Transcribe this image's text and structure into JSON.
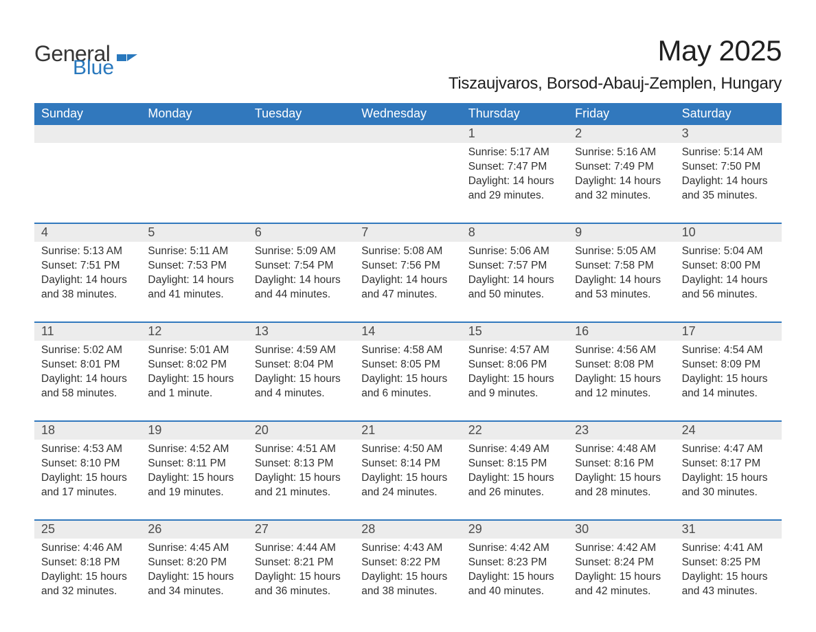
{
  "brand": {
    "part1": "General",
    "part2": "Blue",
    "color1": "#363636",
    "color2": "#2978bd"
  },
  "title": "May 2025",
  "subtitle": "Tiszaujvaros, Borsod-Abauj-Zemplen, Hungary",
  "header_bg": "#3178bd",
  "header_fg": "#ffffff",
  "daynum_bg": "#ececec",
  "divider_color": "#3178bd",
  "page_bg": "#ffffff",
  "text_color": "#303030",
  "day_labels": [
    "Sunday",
    "Monday",
    "Tuesday",
    "Wednesday",
    "Thursday",
    "Friday",
    "Saturday"
  ],
  "weeks": [
    {
      "nums": [
        "",
        "",
        "",
        "",
        "1",
        "2",
        "3"
      ],
      "cells": [
        {
          "sunrise": "",
          "sunset": "",
          "daylight": ""
        },
        {
          "sunrise": "",
          "sunset": "",
          "daylight": ""
        },
        {
          "sunrise": "",
          "sunset": "",
          "daylight": ""
        },
        {
          "sunrise": "",
          "sunset": "",
          "daylight": ""
        },
        {
          "sunrise": "Sunrise: 5:17 AM",
          "sunset": "Sunset: 7:47 PM",
          "daylight": "Daylight: 14 hours and 29 minutes."
        },
        {
          "sunrise": "Sunrise: 5:16 AM",
          "sunset": "Sunset: 7:49 PM",
          "daylight": "Daylight: 14 hours and 32 minutes."
        },
        {
          "sunrise": "Sunrise: 5:14 AM",
          "sunset": "Sunset: 7:50 PM",
          "daylight": "Daylight: 14 hours and 35 minutes."
        }
      ]
    },
    {
      "nums": [
        "4",
        "5",
        "6",
        "7",
        "8",
        "9",
        "10"
      ],
      "cells": [
        {
          "sunrise": "Sunrise: 5:13 AM",
          "sunset": "Sunset: 7:51 PM",
          "daylight": "Daylight: 14 hours and 38 minutes."
        },
        {
          "sunrise": "Sunrise: 5:11 AM",
          "sunset": "Sunset: 7:53 PM",
          "daylight": "Daylight: 14 hours and 41 minutes."
        },
        {
          "sunrise": "Sunrise: 5:09 AM",
          "sunset": "Sunset: 7:54 PM",
          "daylight": "Daylight: 14 hours and 44 minutes."
        },
        {
          "sunrise": "Sunrise: 5:08 AM",
          "sunset": "Sunset: 7:56 PM",
          "daylight": "Daylight: 14 hours and 47 minutes."
        },
        {
          "sunrise": "Sunrise: 5:06 AM",
          "sunset": "Sunset: 7:57 PM",
          "daylight": "Daylight: 14 hours and 50 minutes."
        },
        {
          "sunrise": "Sunrise: 5:05 AM",
          "sunset": "Sunset: 7:58 PM",
          "daylight": "Daylight: 14 hours and 53 minutes."
        },
        {
          "sunrise": "Sunrise: 5:04 AM",
          "sunset": "Sunset: 8:00 PM",
          "daylight": "Daylight: 14 hours and 56 minutes."
        }
      ]
    },
    {
      "nums": [
        "11",
        "12",
        "13",
        "14",
        "15",
        "16",
        "17"
      ],
      "cells": [
        {
          "sunrise": "Sunrise: 5:02 AM",
          "sunset": "Sunset: 8:01 PM",
          "daylight": "Daylight: 14 hours and 58 minutes."
        },
        {
          "sunrise": "Sunrise: 5:01 AM",
          "sunset": "Sunset: 8:02 PM",
          "daylight": "Daylight: 15 hours and 1 minute."
        },
        {
          "sunrise": "Sunrise: 4:59 AM",
          "sunset": "Sunset: 8:04 PM",
          "daylight": "Daylight: 15 hours and 4 minutes."
        },
        {
          "sunrise": "Sunrise: 4:58 AM",
          "sunset": "Sunset: 8:05 PM",
          "daylight": "Daylight: 15 hours and 6 minutes."
        },
        {
          "sunrise": "Sunrise: 4:57 AM",
          "sunset": "Sunset: 8:06 PM",
          "daylight": "Daylight: 15 hours and 9 minutes."
        },
        {
          "sunrise": "Sunrise: 4:56 AM",
          "sunset": "Sunset: 8:08 PM",
          "daylight": "Daylight: 15 hours and 12 minutes."
        },
        {
          "sunrise": "Sunrise: 4:54 AM",
          "sunset": "Sunset: 8:09 PM",
          "daylight": "Daylight: 15 hours and 14 minutes."
        }
      ]
    },
    {
      "nums": [
        "18",
        "19",
        "20",
        "21",
        "22",
        "23",
        "24"
      ],
      "cells": [
        {
          "sunrise": "Sunrise: 4:53 AM",
          "sunset": "Sunset: 8:10 PM",
          "daylight": "Daylight: 15 hours and 17 minutes."
        },
        {
          "sunrise": "Sunrise: 4:52 AM",
          "sunset": "Sunset: 8:11 PM",
          "daylight": "Daylight: 15 hours and 19 minutes."
        },
        {
          "sunrise": "Sunrise: 4:51 AM",
          "sunset": "Sunset: 8:13 PM",
          "daylight": "Daylight: 15 hours and 21 minutes."
        },
        {
          "sunrise": "Sunrise: 4:50 AM",
          "sunset": "Sunset: 8:14 PM",
          "daylight": "Daylight: 15 hours and 24 minutes."
        },
        {
          "sunrise": "Sunrise: 4:49 AM",
          "sunset": "Sunset: 8:15 PM",
          "daylight": "Daylight: 15 hours and 26 minutes."
        },
        {
          "sunrise": "Sunrise: 4:48 AM",
          "sunset": "Sunset: 8:16 PM",
          "daylight": "Daylight: 15 hours and 28 minutes."
        },
        {
          "sunrise": "Sunrise: 4:47 AM",
          "sunset": "Sunset: 8:17 PM",
          "daylight": "Daylight: 15 hours and 30 minutes."
        }
      ]
    },
    {
      "nums": [
        "25",
        "26",
        "27",
        "28",
        "29",
        "30",
        "31"
      ],
      "cells": [
        {
          "sunrise": "Sunrise: 4:46 AM",
          "sunset": "Sunset: 8:18 PM",
          "daylight": "Daylight: 15 hours and 32 minutes."
        },
        {
          "sunrise": "Sunrise: 4:45 AM",
          "sunset": "Sunset: 8:20 PM",
          "daylight": "Daylight: 15 hours and 34 minutes."
        },
        {
          "sunrise": "Sunrise: 4:44 AM",
          "sunset": "Sunset: 8:21 PM",
          "daylight": "Daylight: 15 hours and 36 minutes."
        },
        {
          "sunrise": "Sunrise: 4:43 AM",
          "sunset": "Sunset: 8:22 PM",
          "daylight": "Daylight: 15 hours and 38 minutes."
        },
        {
          "sunrise": "Sunrise: 4:42 AM",
          "sunset": "Sunset: 8:23 PM",
          "daylight": "Daylight: 15 hours and 40 minutes."
        },
        {
          "sunrise": "Sunrise: 4:42 AM",
          "sunset": "Sunset: 8:24 PM",
          "daylight": "Daylight: 15 hours and 42 minutes."
        },
        {
          "sunrise": "Sunrise: 4:41 AM",
          "sunset": "Sunset: 8:25 PM",
          "daylight": "Daylight: 15 hours and 43 minutes."
        }
      ]
    }
  ]
}
